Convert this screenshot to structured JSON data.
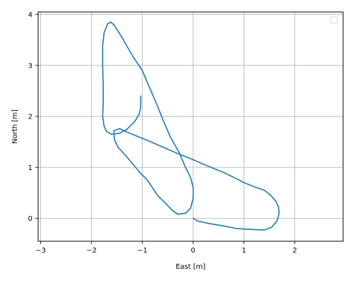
{
  "chart_data": {
    "type": "line",
    "title": "",
    "xlabel": "East [m]",
    "ylabel": "North [m]",
    "xlim": [
      -3.05,
      2.95
    ],
    "ylim": [
      -0.45,
      4.05
    ],
    "xticks": [
      -3,
      -2,
      -1,
      0,
      1,
      2
    ],
    "yticks": [
      0,
      1,
      2,
      3,
      4
    ],
    "xtick_labels": [
      "−3",
      "−2",
      "−1",
      "0",
      "1",
      "2"
    ],
    "ytick_labels": [
      "0",
      "1",
      "2",
      "3",
      "4"
    ],
    "grid": true,
    "legend": {
      "placement": "upper-right",
      "entries": []
    },
    "series": [
      {
        "color": "#1f77b4",
        "x": [
          0.0,
          0.08,
          0.3,
          0.6,
          0.85,
          1.0,
          1.2,
          1.4,
          1.55,
          1.65,
          1.69,
          1.68,
          1.63,
          1.53,
          1.4,
          1.2,
          1.0,
          0.85,
          0.6,
          0.3,
          0.0,
          -0.3,
          -0.6,
          -0.9,
          -1.2,
          -1.45,
          -1.56,
          -1.55,
          -1.48,
          -1.3,
          -1.15,
          -1.05,
          -0.9,
          -0.8,
          -0.7,
          -0.6,
          -0.5,
          -0.4,
          -0.3,
          -0.15,
          -0.05,
          0.0,
          0.0,
          -0.05,
          -0.15,
          -0.28,
          -0.45,
          -0.58,
          -0.7,
          -0.85,
          -1.0,
          -1.2,
          -1.4,
          -1.56,
          -1.62,
          -1.68,
          -1.75,
          -1.78,
          -1.78,
          -1.77,
          -1.77,
          -1.78,
          -1.75,
          -1.7,
          -1.6,
          -1.45,
          -1.3,
          -1.15,
          -1.06,
          -1.03,
          -1.03
        ],
        "y": [
          0.0,
          -0.05,
          -0.1,
          -0.15,
          -0.2,
          -0.21,
          -0.22,
          -0.23,
          -0.17,
          -0.05,
          0.1,
          0.22,
          0.33,
          0.45,
          0.55,
          0.62,
          0.7,
          0.78,
          0.9,
          1.02,
          1.15,
          1.27,
          1.4,
          1.53,
          1.65,
          1.76,
          1.72,
          1.55,
          1.4,
          1.2,
          1.02,
          0.9,
          0.75,
          0.6,
          0.45,
          0.35,
          0.25,
          0.15,
          0.08,
          0.1,
          0.2,
          0.4,
          0.6,
          0.8,
          1.0,
          1.3,
          1.6,
          1.9,
          2.2,
          2.55,
          2.9,
          3.2,
          3.55,
          3.8,
          3.85,
          3.82,
          3.65,
          3.4,
          3.0,
          2.6,
          2.25,
          2.0,
          1.8,
          1.7,
          1.65,
          1.67,
          1.75,
          1.9,
          2.05,
          2.2,
          2.4
        ]
      }
    ]
  }
}
